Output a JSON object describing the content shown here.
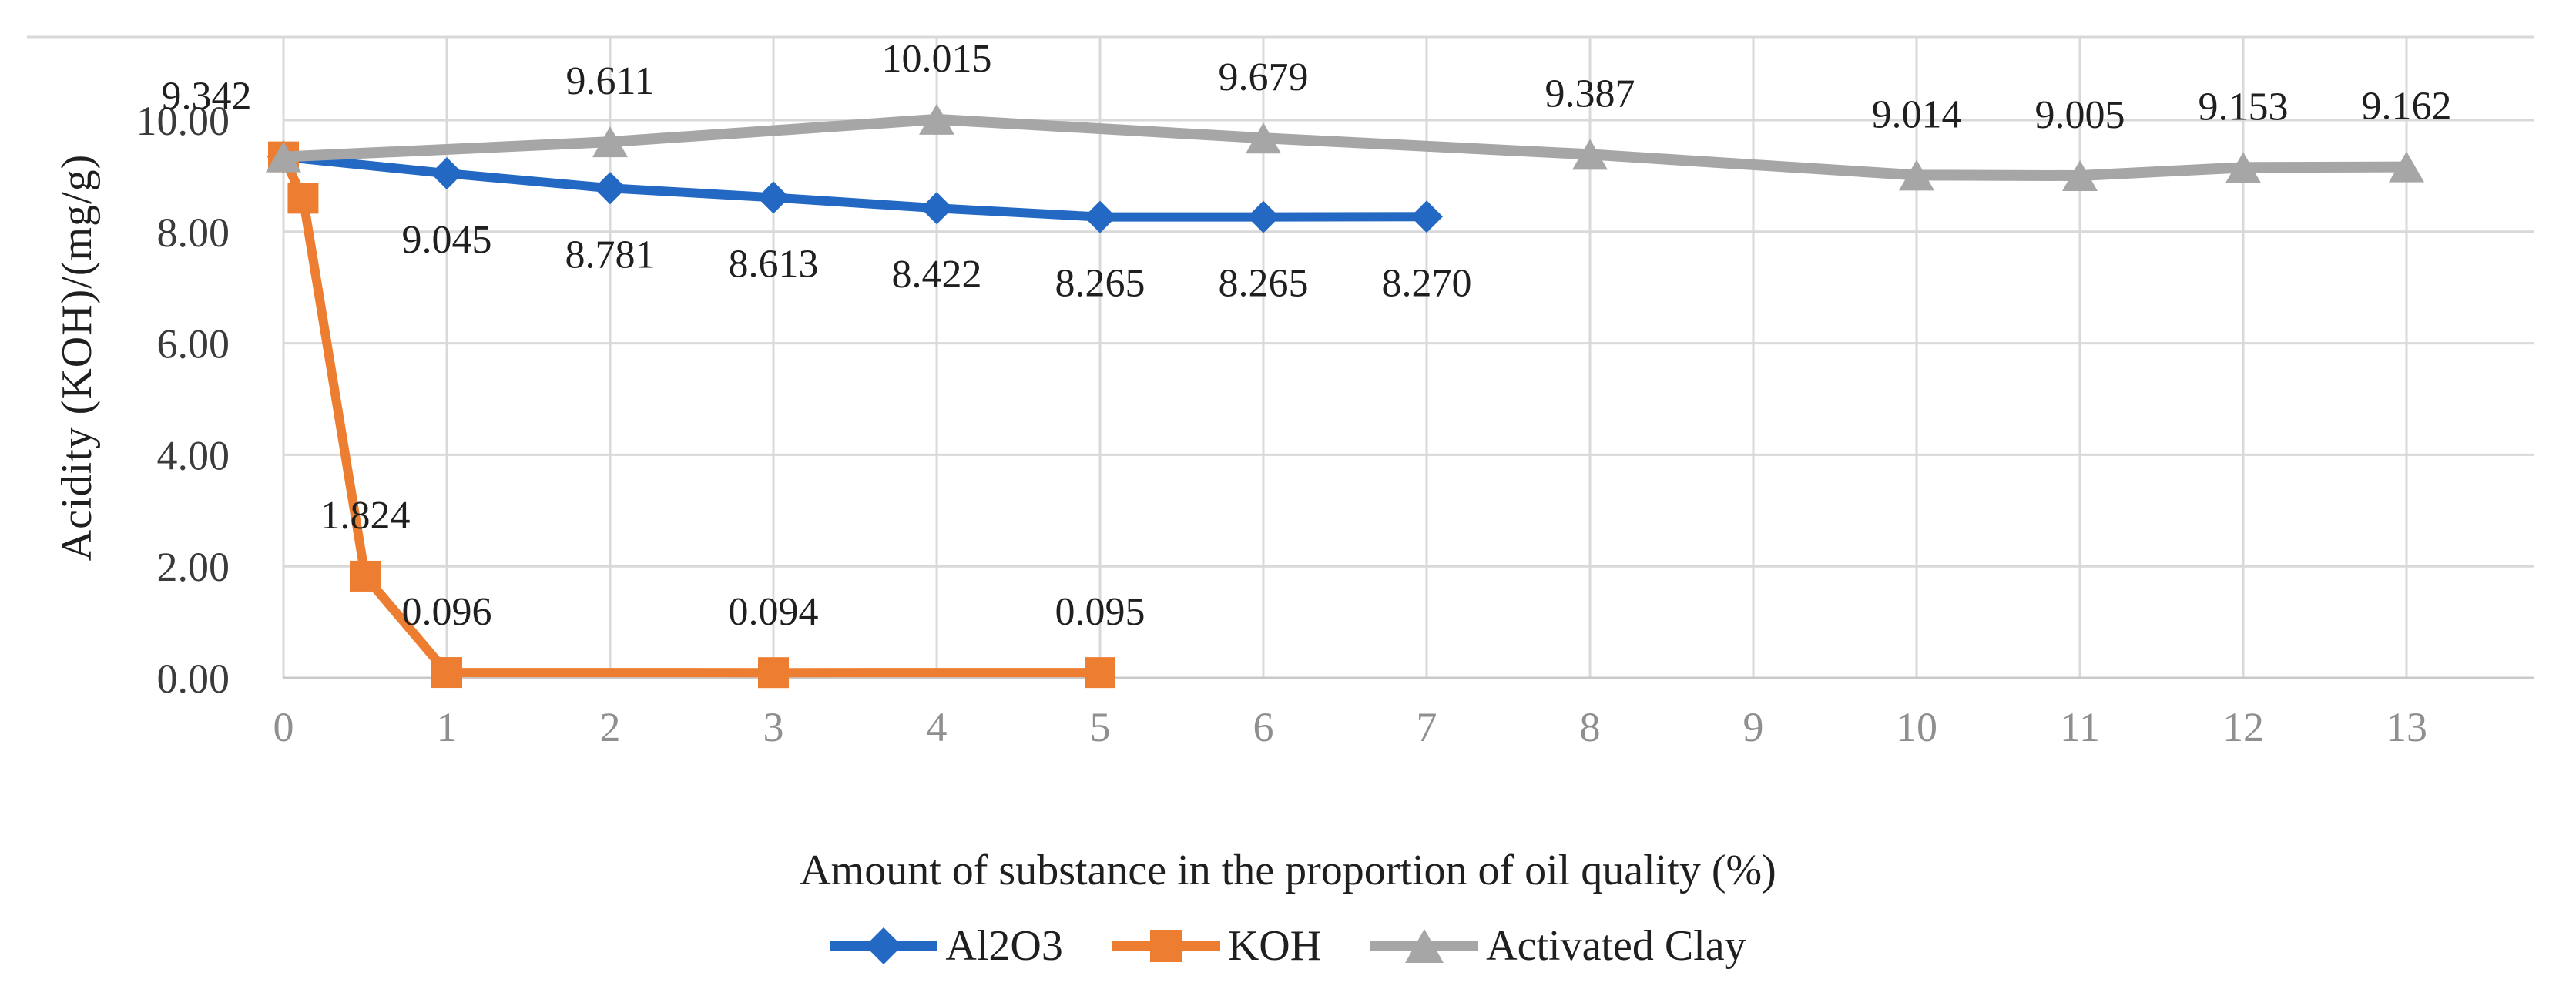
{
  "figure": {
    "background": "#ffffff"
  },
  "colors": {
    "gridline": "#d9d9d9",
    "axis_line": "#c9c9c9",
    "data_label_text": "#1f1f1f",
    "y_tick_text": "#3a3a3a",
    "x_tick_text": "#8f8f8f",
    "title_text": "#1f1f1f"
  },
  "chart_data": {
    "type": "line",
    "title": "",
    "xlabel": "Amount of substance in the proportion of oil quality (%)",
    "ylabel": "Acidity (KOH)/(mg/g)",
    "xlim": [
      0,
      13
    ],
    "ylim": [
      0,
      10
    ],
    "grid": true,
    "legend_position": "bottom",
    "x_ticks": [
      0,
      1,
      2,
      3,
      4,
      5,
      6,
      7,
      8,
      9,
      10,
      11,
      12,
      13
    ],
    "y_ticks": [
      {
        "value": 0,
        "label": "0.00"
      },
      {
        "value": 2,
        "label": "2.00"
      },
      {
        "value": 4,
        "label": "4.00"
      },
      {
        "value": 6,
        "label": "6.00"
      },
      {
        "value": 8,
        "label": "8.00"
      },
      {
        "value": 10,
        "label": "10.00"
      }
    ],
    "series": [
      {
        "name": "Al2O3",
        "color": "#2369c3",
        "marker": "diamond",
        "label_position": "below",
        "points": [
          {
            "x": 0,
            "y": 9.342,
            "label": ""
          },
          {
            "x": 1,
            "y": 9.045,
            "label": "9.045"
          },
          {
            "x": 2,
            "y": 8.781,
            "label": "8.781"
          },
          {
            "x": 3,
            "y": 8.613,
            "label": "8.613"
          },
          {
            "x": 4,
            "y": 8.422,
            "label": "8.422"
          },
          {
            "x": 5,
            "y": 8.265,
            "label": "8.265"
          },
          {
            "x": 6,
            "y": 8.265,
            "label": "8.265"
          },
          {
            "x": 7,
            "y": 8.27,
            "label": "8.270"
          }
        ]
      },
      {
        "name": "KOH",
        "color": "#ed7d31",
        "marker": "square",
        "label_position": "above",
        "points": [
          {
            "x": 0,
            "y": 9.342,
            "label": ""
          },
          {
            "x": 0.12,
            "y": 8.6,
            "label": ""
          },
          {
            "x": 0.5,
            "y": 1.824,
            "label": "1.824"
          },
          {
            "x": 1,
            "y": 0.096,
            "label": "0.096"
          },
          {
            "x": 3,
            "y": 0.094,
            "label": "0.094"
          },
          {
            "x": 5,
            "y": 0.095,
            "label": "0.095"
          }
        ]
      },
      {
        "name": "Activated Clay",
        "color": "#a6a6a6",
        "marker": "triangle",
        "label_position": "above",
        "points": [
          {
            "x": 0,
            "y": 9.342,
            "label": "9.342",
            "label_dx": -100
          },
          {
            "x": 2,
            "y": 9.611,
            "label": "9.611"
          },
          {
            "x": 4,
            "y": 10.015,
            "label": "10.015"
          },
          {
            "x": 6,
            "y": 9.679,
            "label": "9.679"
          },
          {
            "x": 8,
            "y": 9.387,
            "label": "9.387"
          },
          {
            "x": 10,
            "y": 9.014,
            "label": "9.014"
          },
          {
            "x": 11,
            "y": 9.005,
            "label": "9.005"
          },
          {
            "x": 12,
            "y": 9.153,
            "label": "9.153"
          },
          {
            "x": 13,
            "y": 9.162,
            "label": "9.162"
          }
        ]
      }
    ]
  }
}
